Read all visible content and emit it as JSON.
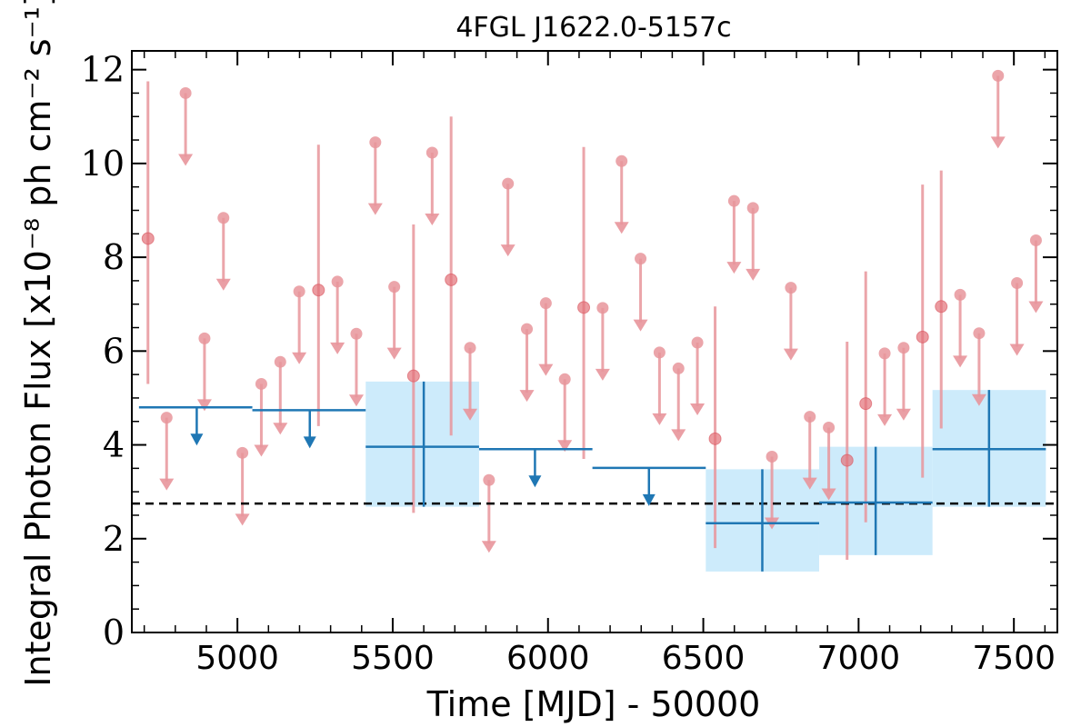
{
  "chart_data": {
    "type": "scatter",
    "title": "4FGL J1622.0-5157c",
    "xlabel": "Time [MJD] - 50000",
    "ylabel": "Integral Photon Flux [x10⁻⁸ ph cm⁻² s⁻¹]",
    "xlim": [
      4660,
      7640
    ],
    "ylim": [
      0,
      12.4
    ],
    "xticks": [
      "5000",
      "5500",
      "6000",
      "6500",
      "7000",
      "7500"
    ],
    "yticks": [
      "0",
      "2",
      "4",
      "6",
      "8",
      "10",
      "12"
    ],
    "grid": false,
    "reference_level": 2.75,
    "colors": {
      "monthly": "#e8959b",
      "yearly": "#1f77b4",
      "yearly_band": "#cdebfb",
      "reference": "#000000"
    },
    "series": [
      {
        "kind": "monthly-detections",
        "points": [
          {
            "x": 4712,
            "y": 8.4,
            "ylo": 5.3,
            "yhi": 11.75
          },
          {
            "x": 5261,
            "y": 7.3,
            "ylo": 4.4,
            "yhi": 10.4
          },
          {
            "x": 5567,
            "y": 5.47,
            "ylo": 2.55,
            "yhi": 8.7
          },
          {
            "x": 5688,
            "y": 7.52,
            "ylo": 4.2,
            "yhi": 11.0
          },
          {
            "x": 6115,
            "y": 6.93,
            "ylo": 3.7,
            "yhi": 10.35
          },
          {
            "x": 6538,
            "y": 4.13,
            "ylo": 1.8,
            "yhi": 6.95
          },
          {
            "x": 6963,
            "y": 3.67,
            "ylo": 1.55,
            "yhi": 6.2
          },
          {
            "x": 7023,
            "y": 4.88,
            "ylo": 2.35,
            "yhi": 7.7
          },
          {
            "x": 7206,
            "y": 6.3,
            "ylo": 3.3,
            "yhi": 9.55
          },
          {
            "x": 7266,
            "y": 6.95,
            "ylo": 4.35,
            "yhi": 9.85
          }
        ]
      },
      {
        "kind": "monthly-upper-limits",
        "points": [
          {
            "x": 4772,
            "y": 4.58
          },
          {
            "x": 4833,
            "y": 11.5
          },
          {
            "x": 4894,
            "y": 6.27
          },
          {
            "x": 4955,
            "y": 8.84
          },
          {
            "x": 5016,
            "y": 3.83
          },
          {
            "x": 5077,
            "y": 5.3
          },
          {
            "x": 5138,
            "y": 5.77
          },
          {
            "x": 5199,
            "y": 7.27
          },
          {
            "x": 5322,
            "y": 7.48
          },
          {
            "x": 5383,
            "y": 6.37
          },
          {
            "x": 5444,
            "y": 10.45
          },
          {
            "x": 5505,
            "y": 7.37
          },
          {
            "x": 5627,
            "y": 10.23
          },
          {
            "x": 5749,
            "y": 6.07
          },
          {
            "x": 5810,
            "y": 3.25
          },
          {
            "x": 5871,
            "y": 9.57
          },
          {
            "x": 5932,
            "y": 6.47
          },
          {
            "x": 5993,
            "y": 7.02
          },
          {
            "x": 6054,
            "y": 5.4
          },
          {
            "x": 6176,
            "y": 6.92
          },
          {
            "x": 6237,
            "y": 10.05
          },
          {
            "x": 6298,
            "y": 7.97
          },
          {
            "x": 6359,
            "y": 5.97
          },
          {
            "x": 6420,
            "y": 5.63
          },
          {
            "x": 6481,
            "y": 6.18
          },
          {
            "x": 6599,
            "y": 9.2
          },
          {
            "x": 6660,
            "y": 9.05
          },
          {
            "x": 6721,
            "y": 3.75
          },
          {
            "x": 6782,
            "y": 7.35
          },
          {
            "x": 6843,
            "y": 4.6
          },
          {
            "x": 6904,
            "y": 4.37
          },
          {
            "x": 7084,
            "y": 5.95
          },
          {
            "x": 7145,
            "y": 6.07
          },
          {
            "x": 7327,
            "y": 7.2
          },
          {
            "x": 7388,
            "y": 6.38
          },
          {
            "x": 7449,
            "y": 11.87
          },
          {
            "x": 7510,
            "y": 7.45
          },
          {
            "x": 7571,
            "y": 8.36
          }
        ]
      },
      {
        "kind": "yearly-detections",
        "points": [
          {
            "x": 5600,
            "xlo": 5413,
            "xhi": 5778,
            "y": 3.96,
            "ylo": 2.68,
            "yhi": 5.35
          },
          {
            "x": 6690,
            "xlo": 6508,
            "xhi": 6873,
            "y": 2.33,
            "ylo": 1.3,
            "yhi": 3.48
          },
          {
            "x": 7055,
            "xlo": 6873,
            "xhi": 7238,
            "y": 2.77,
            "ylo": 1.65,
            "yhi": 3.96
          },
          {
            "x": 7420,
            "xlo": 7238,
            "xhi": 7603,
            "y": 3.91,
            "ylo": 2.68,
            "yhi": 5.17
          }
        ]
      },
      {
        "kind": "yearly-upper-limits",
        "points": [
          {
            "x": 4869,
            "xlo": 4683,
            "xhi": 5048,
            "y": 4.8
          },
          {
            "x": 5233,
            "xlo": 5048,
            "xhi": 5413,
            "y": 4.74
          },
          {
            "x": 5958,
            "xlo": 5778,
            "xhi": 6143,
            "y": 3.91
          },
          {
            "x": 6325,
            "xlo": 6143,
            "xhi": 6508,
            "y": 3.51
          }
        ]
      }
    ]
  }
}
